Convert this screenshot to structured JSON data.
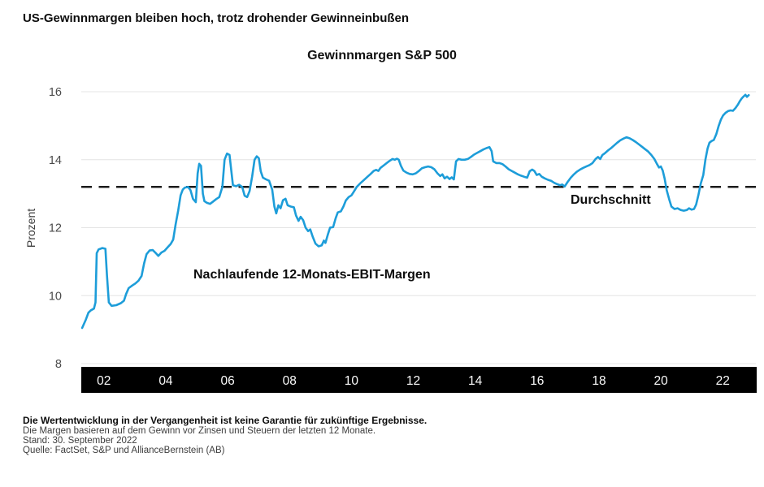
{
  "page": {
    "heading": "US-Gewinnmargen bleiben hoch, trotz drohender Gewinneinbußen",
    "footnotes": {
      "disclaimer_bold": "Die Wertentwicklung in der Vergangenheit ist keine Garantie für zukünftige Ergebnisse.",
      "note": "Die Margen basieren auf dem Gewinn vor Zinsen und Steuern der letzten 12 Monate.",
      "as_of": "Stand: 30. September 2022",
      "source": "Quelle: FactSet, S&P und AllianceBernstein (AB)"
    }
  },
  "chart_data": {
    "type": "line",
    "title": "Gewinnmargen S&P 500",
    "ylabel": "Prozent",
    "xlim": [
      2001.27,
      2023.07
    ],
    "ylim": [
      8,
      16
    ],
    "grid": "horizontal",
    "y_ticks": [
      16,
      14,
      12,
      10,
      8
    ],
    "x_ticks": {
      "years": [
        2002,
        2004,
        2006,
        2008,
        2010,
        2012,
        2014,
        2016,
        2018,
        2020,
        2022
      ],
      "labels": [
        "02",
        "04",
        "06",
        "08",
        "10",
        "12",
        "14",
        "16",
        "18",
        "20",
        "22"
      ]
    },
    "x_axis_style": "black-band",
    "average_line": {
      "label": "Durchschnitt",
      "value": 13.2,
      "style": "dashed",
      "color": "#1c1c1c"
    },
    "series": [
      {
        "name": "Nachlaufende 12-Monats-EBIT-Margen",
        "color": "#1d9dd9",
        "points": [
          [
            2001.3,
            9.05
          ],
          [
            2001.42,
            9.3
          ],
          [
            2001.5,
            9.5
          ],
          [
            2001.58,
            9.57
          ],
          [
            2001.68,
            9.62
          ],
          [
            2001.73,
            9.8
          ],
          [
            2001.77,
            11.25
          ],
          [
            2001.83,
            11.36
          ],
          [
            2001.95,
            11.4
          ],
          [
            2002.05,
            11.38
          ],
          [
            2002.1,
            10.6
          ],
          [
            2002.16,
            9.8
          ],
          [
            2002.25,
            9.7
          ],
          [
            2002.4,
            9.72
          ],
          [
            2002.55,
            9.78
          ],
          [
            2002.65,
            9.85
          ],
          [
            2002.72,
            10.05
          ],
          [
            2002.8,
            10.22
          ],
          [
            2002.92,
            10.3
          ],
          [
            2003.02,
            10.36
          ],
          [
            2003.12,
            10.44
          ],
          [
            2003.22,
            10.58
          ],
          [
            2003.3,
            10.95
          ],
          [
            2003.38,
            11.22
          ],
          [
            2003.48,
            11.33
          ],
          [
            2003.58,
            11.34
          ],
          [
            2003.68,
            11.25
          ],
          [
            2003.76,
            11.17
          ],
          [
            2003.86,
            11.27
          ],
          [
            2003.96,
            11.32
          ],
          [
            2004.06,
            11.42
          ],
          [
            2004.16,
            11.52
          ],
          [
            2004.24,
            11.65
          ],
          [
            2004.32,
            12.1
          ],
          [
            2004.4,
            12.5
          ],
          [
            2004.48,
            12.95
          ],
          [
            2004.55,
            13.12
          ],
          [
            2004.62,
            13.18
          ],
          [
            2004.72,
            13.2
          ],
          [
            2004.8,
            13.1
          ],
          [
            2004.88,
            12.85
          ],
          [
            2004.97,
            12.75
          ],
          [
            2005.03,
            13.6
          ],
          [
            2005.08,
            13.88
          ],
          [
            2005.14,
            13.82
          ],
          [
            2005.2,
            13.0
          ],
          [
            2005.25,
            12.78
          ],
          [
            2005.33,
            12.73
          ],
          [
            2005.43,
            12.7
          ],
          [
            2005.53,
            12.77
          ],
          [
            2005.63,
            12.84
          ],
          [
            2005.73,
            12.9
          ],
          [
            2005.83,
            13.2
          ],
          [
            2005.9,
            14.0
          ],
          [
            2005.98,
            14.18
          ],
          [
            2006.06,
            14.14
          ],
          [
            2006.12,
            13.65
          ],
          [
            2006.17,
            13.25
          ],
          [
            2006.27,
            13.22
          ],
          [
            2006.37,
            13.26
          ],
          [
            2006.47,
            13.2
          ],
          [
            2006.55,
            12.94
          ],
          [
            2006.63,
            12.9
          ],
          [
            2006.71,
            13.08
          ],
          [
            2006.79,
            13.5
          ],
          [
            2006.87,
            14.0
          ],
          [
            2006.94,
            14.1
          ],
          [
            2007.01,
            14.04
          ],
          [
            2007.07,
            13.66
          ],
          [
            2007.14,
            13.47
          ],
          [
            2007.24,
            13.42
          ],
          [
            2007.34,
            13.38
          ],
          [
            2007.44,
            13.12
          ],
          [
            2007.51,
            12.62
          ],
          [
            2007.57,
            12.42
          ],
          [
            2007.64,
            12.66
          ],
          [
            2007.71,
            12.57
          ],
          [
            2007.79,
            12.81
          ],
          [
            2007.87,
            12.85
          ],
          [
            2007.94,
            12.66
          ],
          [
            2008.04,
            12.62
          ],
          [
            2008.14,
            12.6
          ],
          [
            2008.21,
            12.36
          ],
          [
            2008.29,
            12.2
          ],
          [
            2008.36,
            12.32
          ],
          [
            2008.44,
            12.22
          ],
          [
            2008.52,
            12.0
          ],
          [
            2008.6,
            11.9
          ],
          [
            2008.67,
            11.95
          ],
          [
            2008.75,
            11.73
          ],
          [
            2008.84,
            11.53
          ],
          [
            2008.94,
            11.45
          ],
          [
            2009.04,
            11.48
          ],
          [
            2009.11,
            11.62
          ],
          [
            2009.16,
            11.55
          ],
          [
            2009.24,
            11.8
          ],
          [
            2009.31,
            12.0
          ],
          [
            2009.41,
            12.02
          ],
          [
            2009.49,
            12.28
          ],
          [
            2009.56,
            12.45
          ],
          [
            2009.66,
            12.48
          ],
          [
            2009.74,
            12.62
          ],
          [
            2009.82,
            12.8
          ],
          [
            2009.91,
            12.9
          ],
          [
            2010.0,
            12.95
          ],
          [
            2010.08,
            13.06
          ],
          [
            2010.17,
            13.2
          ],
          [
            2010.28,
            13.3
          ],
          [
            2010.4,
            13.4
          ],
          [
            2010.52,
            13.5
          ],
          [
            2010.62,
            13.58
          ],
          [
            2010.72,
            13.67
          ],
          [
            2010.8,
            13.7
          ],
          [
            2010.87,
            13.67
          ],
          [
            2010.94,
            13.76
          ],
          [
            2011.04,
            13.83
          ],
          [
            2011.14,
            13.9
          ],
          [
            2011.24,
            13.97
          ],
          [
            2011.33,
            14.02
          ],
          [
            2011.4,
            14.0
          ],
          [
            2011.47,
            14.03
          ],
          [
            2011.53,
            14.0
          ],
          [
            2011.6,
            13.82
          ],
          [
            2011.68,
            13.68
          ],
          [
            2011.78,
            13.62
          ],
          [
            2011.88,
            13.58
          ],
          [
            2011.98,
            13.57
          ],
          [
            2012.08,
            13.6
          ],
          [
            2012.18,
            13.67
          ],
          [
            2012.28,
            13.75
          ],
          [
            2012.38,
            13.78
          ],
          [
            2012.48,
            13.8
          ],
          [
            2012.58,
            13.78
          ],
          [
            2012.68,
            13.72
          ],
          [
            2012.78,
            13.6
          ],
          [
            2012.87,
            13.52
          ],
          [
            2012.94,
            13.57
          ],
          [
            2013.01,
            13.45
          ],
          [
            2013.09,
            13.5
          ],
          [
            2013.17,
            13.43
          ],
          [
            2013.24,
            13.48
          ],
          [
            2013.31,
            13.42
          ],
          [
            2013.38,
            13.95
          ],
          [
            2013.46,
            14.02
          ],
          [
            2013.56,
            14.0
          ],
          [
            2013.66,
            14.0
          ],
          [
            2013.76,
            14.02
          ],
          [
            2013.86,
            14.08
          ],
          [
            2013.96,
            14.15
          ],
          [
            2014.06,
            14.2
          ],
          [
            2014.16,
            14.25
          ],
          [
            2014.26,
            14.3
          ],
          [
            2014.36,
            14.34
          ],
          [
            2014.46,
            14.37
          ],
          [
            2014.53,
            14.25
          ],
          [
            2014.58,
            13.95
          ],
          [
            2014.68,
            13.9
          ],
          [
            2014.78,
            13.9
          ],
          [
            2014.88,
            13.87
          ],
          [
            2014.98,
            13.8
          ],
          [
            2015.08,
            13.72
          ],
          [
            2015.18,
            13.67
          ],
          [
            2015.28,
            13.62
          ],
          [
            2015.38,
            13.57
          ],
          [
            2015.48,
            13.53
          ],
          [
            2015.58,
            13.5
          ],
          [
            2015.68,
            13.47
          ],
          [
            2015.76,
            13.66
          ],
          [
            2015.84,
            13.71
          ],
          [
            2015.91,
            13.67
          ],
          [
            2015.99,
            13.55
          ],
          [
            2016.07,
            13.58
          ],
          [
            2016.15,
            13.5
          ],
          [
            2016.25,
            13.45
          ],
          [
            2016.35,
            13.41
          ],
          [
            2016.45,
            13.38
          ],
          [
            2016.55,
            13.32
          ],
          [
            2016.65,
            13.28
          ],
          [
            2016.74,
            13.25
          ],
          [
            2016.81,
            13.27
          ],
          [
            2016.89,
            13.21
          ],
          [
            2016.99,
            13.35
          ],
          [
            2017.09,
            13.47
          ],
          [
            2017.19,
            13.57
          ],
          [
            2017.29,
            13.65
          ],
          [
            2017.39,
            13.71
          ],
          [
            2017.49,
            13.76
          ],
          [
            2017.59,
            13.8
          ],
          [
            2017.69,
            13.84
          ],
          [
            2017.79,
            13.9
          ],
          [
            2017.89,
            14.02
          ],
          [
            2017.97,
            14.08
          ],
          [
            2018.04,
            14.02
          ],
          [
            2018.11,
            14.14
          ],
          [
            2018.19,
            14.19
          ],
          [
            2018.29,
            14.27
          ],
          [
            2018.39,
            14.34
          ],
          [
            2018.49,
            14.42
          ],
          [
            2018.59,
            14.5
          ],
          [
            2018.69,
            14.57
          ],
          [
            2018.79,
            14.62
          ],
          [
            2018.89,
            14.66
          ],
          [
            2018.99,
            14.63
          ],
          [
            2019.09,
            14.58
          ],
          [
            2019.19,
            14.52
          ],
          [
            2019.29,
            14.45
          ],
          [
            2019.39,
            14.38
          ],
          [
            2019.49,
            14.31
          ],
          [
            2019.59,
            14.24
          ],
          [
            2019.69,
            14.14
          ],
          [
            2019.79,
            14.02
          ],
          [
            2019.87,
            13.88
          ],
          [
            2019.94,
            13.77
          ],
          [
            2020.0,
            13.8
          ],
          [
            2020.06,
            13.68
          ],
          [
            2020.12,
            13.45
          ],
          [
            2020.19,
            13.1
          ],
          [
            2020.27,
            12.83
          ],
          [
            2020.34,
            12.62
          ],
          [
            2020.44,
            12.55
          ],
          [
            2020.54,
            12.57
          ],
          [
            2020.64,
            12.52
          ],
          [
            2020.74,
            12.5
          ],
          [
            2020.84,
            12.52
          ],
          [
            2020.91,
            12.57
          ],
          [
            2020.99,
            12.53
          ],
          [
            2021.07,
            12.55
          ],
          [
            2021.14,
            12.68
          ],
          [
            2021.21,
            12.95
          ],
          [
            2021.29,
            13.3
          ],
          [
            2021.37,
            13.55
          ],
          [
            2021.44,
            14.0
          ],
          [
            2021.51,
            14.33
          ],
          [
            2021.57,
            14.5
          ],
          [
            2021.64,
            14.55
          ],
          [
            2021.71,
            14.58
          ],
          [
            2021.79,
            14.75
          ],
          [
            2021.87,
            15.0
          ],
          [
            2021.94,
            15.18
          ],
          [
            2022.01,
            15.3
          ],
          [
            2022.09,
            15.38
          ],
          [
            2022.17,
            15.43
          ],
          [
            2022.25,
            15.45
          ],
          [
            2022.33,
            15.44
          ],
          [
            2022.41,
            15.52
          ],
          [
            2022.49,
            15.62
          ],
          [
            2022.55,
            15.72
          ],
          [
            2022.61,
            15.8
          ],
          [
            2022.67,
            15.86
          ],
          [
            2022.73,
            15.91
          ],
          [
            2022.78,
            15.85
          ],
          [
            2022.84,
            15.9
          ]
        ]
      }
    ]
  }
}
